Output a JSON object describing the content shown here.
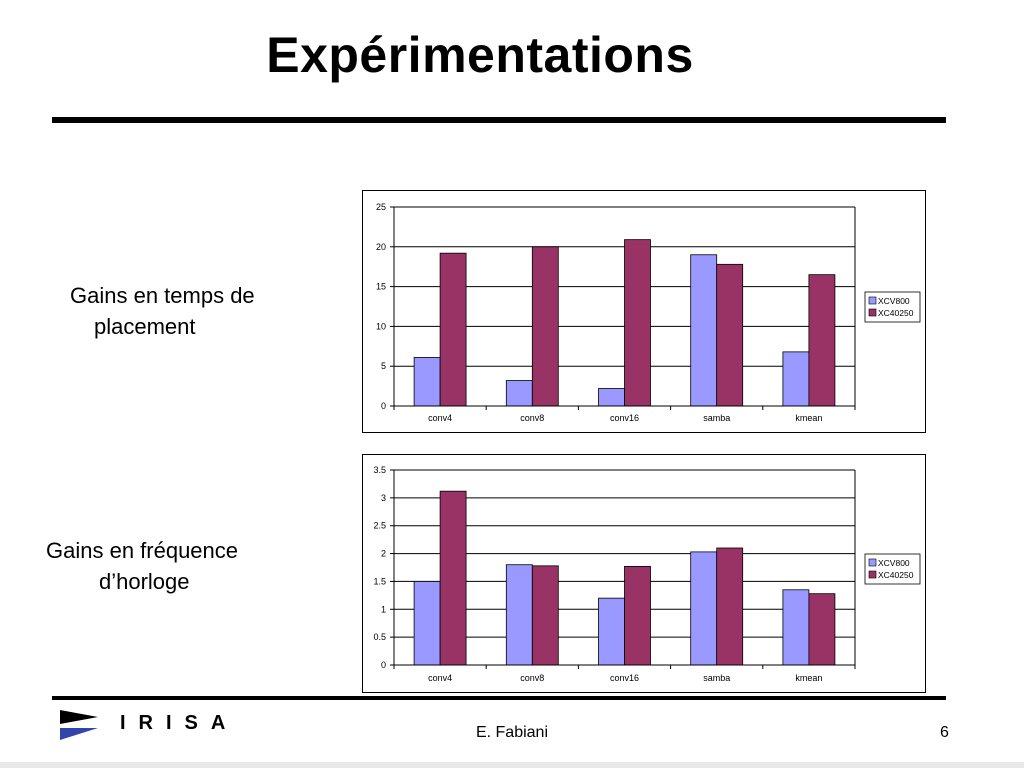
{
  "slide": {
    "title": "Expérimentations",
    "label1": {
      "line1": "Gains en temps de",
      "line2": "placement"
    },
    "label2": {
      "line1": "Gains en fréquence",
      "line2": "d’horloge"
    },
    "author": "E. Fabiani",
    "page": "6",
    "logo_text": "IRISA",
    "colors": {
      "series1": "#9999ff",
      "series2": "#993366",
      "logo_blue": "#3344aa"
    }
  },
  "chart_data": [
    {
      "type": "bar",
      "title": "",
      "xlabel": "",
      "ylabel": "",
      "categories": [
        "conv4",
        "conv8",
        "conv16",
        "samba",
        "kmean"
      ],
      "series": [
        {
          "name": "XCV800",
          "values": [
            6.1,
            3.2,
            2.2,
            19,
            6.8
          ]
        },
        {
          "name": "XC40250",
          "values": [
            19.2,
            20,
            20.9,
            17.8,
            16.5
          ]
        }
      ],
      "ylim": [
        0,
        25
      ],
      "yticks": [
        "0",
        "5",
        "10",
        "15",
        "20",
        "25"
      ],
      "grid": true,
      "legend": "right"
    },
    {
      "type": "bar",
      "title": "",
      "xlabel": "",
      "ylabel": "",
      "categories": [
        "conv4",
        "conv8",
        "conv16",
        "samba",
        "kmean"
      ],
      "series": [
        {
          "name": "XCV800",
          "values": [
            1.5,
            1.8,
            1.2,
            2.03,
            1.35
          ]
        },
        {
          "name": "XC40250",
          "values": [
            3.12,
            1.78,
            1.77,
            2.1,
            1.28
          ]
        }
      ],
      "ylim": [
        0,
        3.5
      ],
      "yticks": [
        "0",
        "0.5",
        "1",
        "1.5",
        "2",
        "2.5",
        "3",
        "3.5"
      ],
      "grid": true,
      "legend": "right"
    }
  ]
}
